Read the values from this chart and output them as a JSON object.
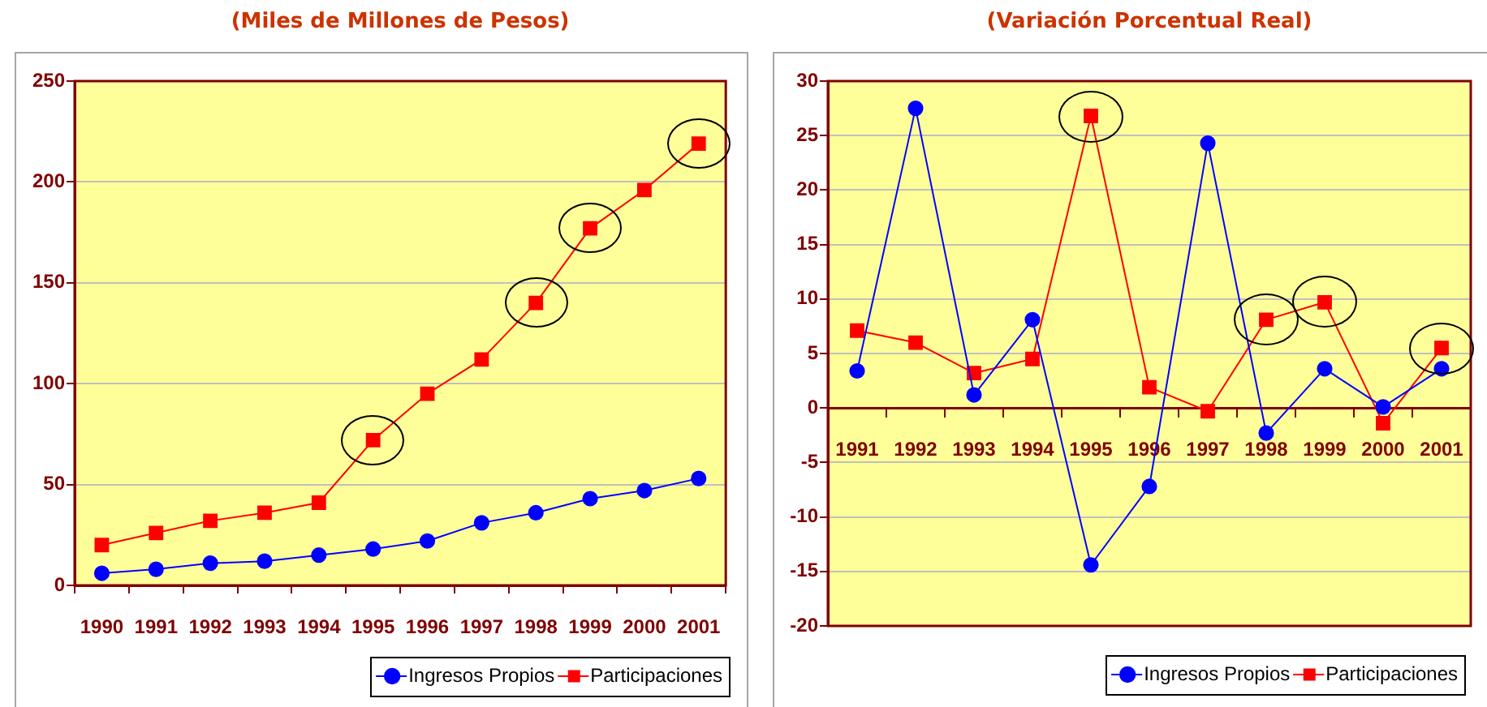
{
  "chart_data": [
    {
      "type": "line",
      "title": "(Miles de Millones de Pesos)",
      "categories": [
        "1990",
        "1991",
        "1992",
        "1993",
        "1994",
        "1995",
        "1996",
        "1997",
        "1998",
        "1999",
        "2000",
        "2001"
      ],
      "series": [
        {
          "name": "Ingresos Propios",
          "color": "#0000ff",
          "marker": "circle",
          "values": [
            6,
            8,
            11,
            12,
            15,
            18,
            22,
            31,
            36,
            43,
            47,
            53
          ]
        },
        {
          "name": "Participaciones",
          "color": "#ff0000",
          "marker": "square",
          "values": [
            20,
            26,
            32,
            36,
            41,
            72,
            95,
            112,
            140,
            177,
            196,
            219
          ]
        }
      ],
      "ylim": [
        0,
        250
      ],
      "yticks": [
        0,
        50,
        100,
        150,
        200,
        250
      ],
      "grid": "y",
      "legend": "bottom right"
    },
    {
      "type": "line",
      "title": "(Variación Porcentual Real)",
      "categories": [
        "1991",
        "1992",
        "1993",
        "1994",
        "1995",
        "1996",
        "1997",
        "1998",
        "1999",
        "2000",
        "2001"
      ],
      "series": [
        {
          "name": "Ingresos Propios",
          "color": "#0000ff",
          "marker": "circle",
          "values": [
            3.4,
            27.5,
            1.2,
            8.1,
            -14.4,
            -7.2,
            24.3,
            -2.3,
            3.6,
            0.1,
            3.6
          ]
        },
        {
          "name": "Participaciones",
          "color": "#ff0000",
          "marker": "square",
          "values": [
            7.1,
            6.0,
            3.2,
            4.5,
            26.8,
            1.9,
            -0.3,
            8.1,
            9.7,
            -1.4,
            5.5
          ]
        }
      ],
      "ylim": [
        -20,
        30
      ],
      "yticks": [
        -20,
        -15,
        -10,
        -5,
        0,
        5,
        10,
        15,
        20,
        25,
        30
      ],
      "grid": "y",
      "legend": "bottom right"
    }
  ]
}
